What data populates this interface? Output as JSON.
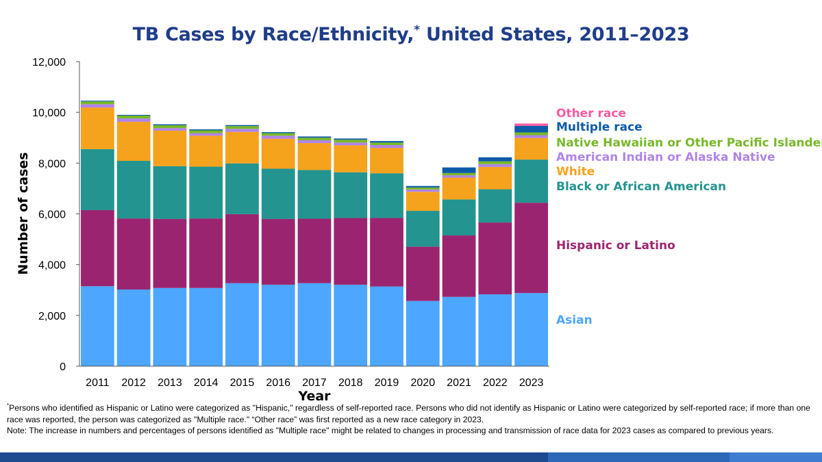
{
  "title_main": "TB Cases by Race/Ethnicity,",
  "title_mark": "*",
  "title_rest": " United States, 2011–2023",
  "footnote": {
    "mark": "*",
    "line1": "Persons who identified as Hispanic or Latino were categorized as \"Hispanic,\" regardless of self-reported race. Persons who did not identify as Hispanic or Latino were categorized by self-reported race; if more than one race was reported, the person was categorized as \"Multiple race.\" “Other race” was first reported as a new race category in 2023.",
    "note": "Note: The increase in numbers and percentages of persons identified as \"Multiple race\" might be related to changes in processing and transmission of race data for 2023 cases as compared to previous years."
  },
  "chart_data": {
    "type": "bar",
    "stacked": true,
    "xlabel": "Year",
    "ylabel": "Number of cases",
    "ylim": [
      0,
      12000
    ],
    "yticks": [
      0,
      2000,
      4000,
      6000,
      8000,
      10000,
      12000
    ],
    "ytick_labels": [
      "0",
      "2,000",
      "4,000",
      "6,000",
      "8,000",
      "10,000",
      "12,000"
    ],
    "categories": [
      "2011",
      "2012",
      "2013",
      "2014",
      "2015",
      "2016",
      "2017",
      "2018",
      "2019",
      "2020",
      "2021",
      "2022",
      "2023"
    ],
    "series": [
      {
        "name": "Asian",
        "color": "#4da6ff",
        "values": [
          3150,
          3020,
          3080,
          3080,
          3270,
          3210,
          3270,
          3210,
          3140,
          2570,
          2730,
          2830,
          2880
        ]
      },
      {
        "name": "Hispanic or Latino",
        "color": "#9b2470",
        "values": [
          3000,
          2800,
          2720,
          2740,
          2720,
          2590,
          2540,
          2630,
          2700,
          2140,
          2420,
          2830,
          3560
        ]
      },
      {
        "name": "Black or African American",
        "color": "#23948f",
        "values": [
          2400,
          2270,
          2080,
          2040,
          2000,
          1980,
          1920,
          1800,
          1760,
          1410,
          1420,
          1310,
          1700
        ]
      },
      {
        "name": "White",
        "color": "#f5a21c",
        "values": [
          1640,
          1540,
          1400,
          1220,
          1240,
          1180,
          1060,
          1060,
          1000,
          750,
          860,
          880,
          850
        ]
      },
      {
        "name": "American Indian or Alaska Native",
        "color": "#b084e8",
        "values": [
          130,
          130,
          100,
          100,
          120,
          120,
          110,
          110,
          110,
          90,
          90,
          110,
          110
        ]
      },
      {
        "name": "Native Hawaiian or Other Pacific Islander",
        "color": "#78b829",
        "values": [
          110,
          110,
          110,
          110,
          110,
          100,
          100,
          110,
          100,
          80,
          90,
          110,
          110
        ]
      },
      {
        "name": "Multiple race",
        "color": "#0d5ba8",
        "values": [
          30,
          30,
          40,
          40,
          40,
          40,
          50,
          50,
          60,
          60,
          220,
          160,
          260
        ]
      },
      {
        "name": "Other race",
        "color": "#ff5aa0",
        "values": [
          0,
          0,
          0,
          0,
          0,
          0,
          0,
          0,
          0,
          0,
          0,
          0,
          90
        ]
      }
    ],
    "legend": [
      {
        "name": "Other race",
        "color": "#ff5aa0"
      },
      {
        "name": "Multiple race",
        "color": "#0d5ba8"
      },
      {
        "name": "Native Hawaiian or Other Pacific Islander",
        "color": "#78b829"
      },
      {
        "name": "American Indian or Alaska Native",
        "color": "#b084e8"
      },
      {
        "name": "White",
        "color": "#f5a21c"
      },
      {
        "name": "Black or African American",
        "color": "#23948f"
      },
      {
        "name": "Hispanic or Latino",
        "color": "#9b2470"
      },
      {
        "name": "Asian",
        "color": "#4da6ff"
      }
    ],
    "legend_placement": "right, aligned with stacked segments"
  }
}
